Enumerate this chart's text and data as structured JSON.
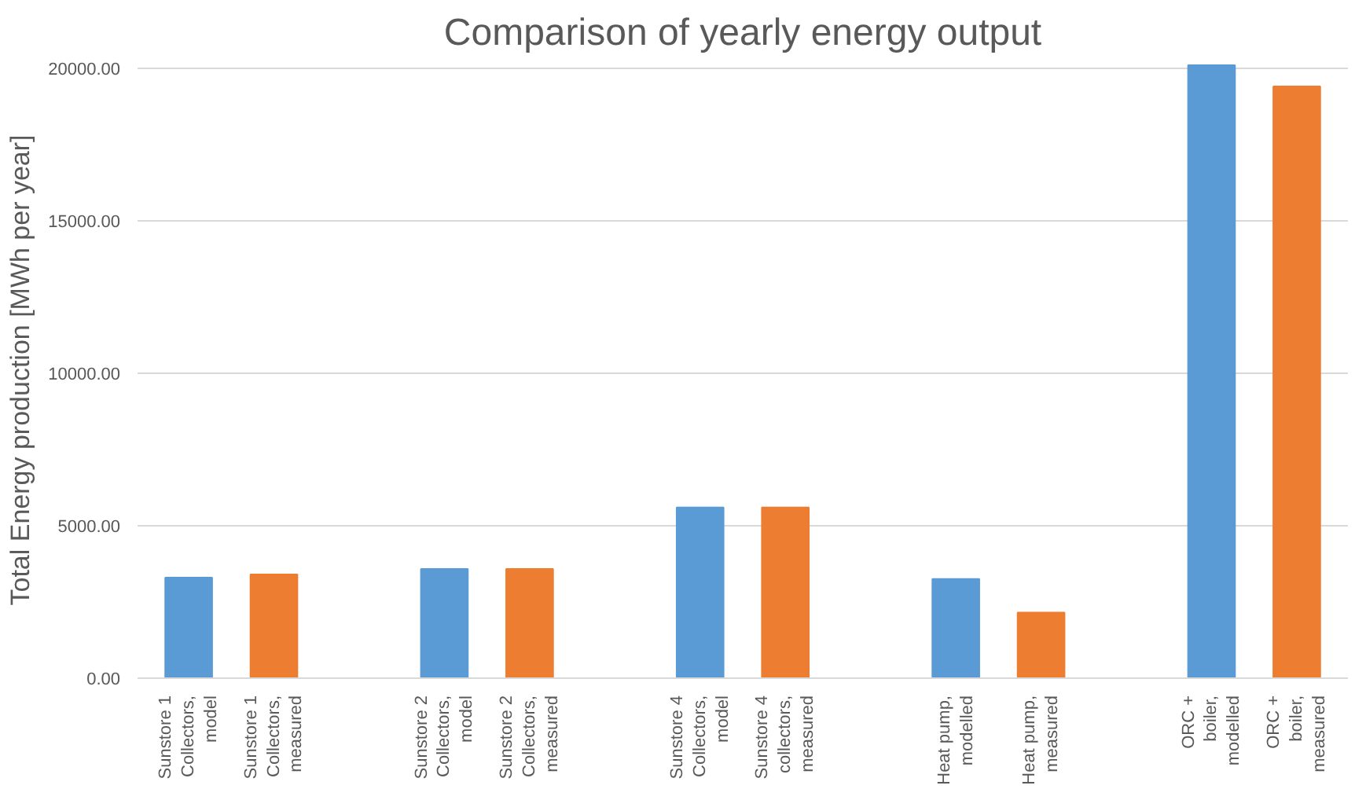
{
  "chart_data": {
    "type": "bar",
    "title": "Comparison of yearly energy output",
    "ylabel": "Total Energy production [MWh per year]",
    "categories": [
      "Sunstore 1\nCollectors,\nmodel",
      "Sunstore 1\nCollectors,\nmeasured",
      null,
      "Sunstore 2\nCollectors,\nmodel",
      "Sunstore 2\nCollectors,\nmeasured",
      null,
      "Sunstore 4\nCollectors,\nmodel",
      "Sunstore 4\ncollectors,\nmeasured",
      null,
      "Heat pump,\nmodelled",
      "Heat pump,\nmeasured",
      null,
      "ORC +\nboiler,\nmodelled",
      "ORC +\nboiler,\nmeasured"
    ],
    "values": [
      3300,
      3400,
      null,
      3580,
      3580,
      null,
      5600,
      5600,
      null,
      3250,
      2150,
      null,
      20100,
      19400
    ],
    "colors": [
      "#5b9bd5",
      "#ed7d31",
      null,
      "#5b9bd5",
      "#ed7d31",
      null,
      "#5b9bd5",
      "#ed7d31",
      null,
      "#5b9bd5",
      "#ed7d31",
      null,
      "#5b9bd5",
      "#ed7d31"
    ],
    "ylim": [
      0,
      20200
    ],
    "yticks": [
      {
        "value": 0,
        "label": "0.00"
      },
      {
        "value": 5000,
        "label": "5000.00"
      },
      {
        "value": 10000,
        "label": "10000.00"
      },
      {
        "value": 15000,
        "label": "15000.00"
      },
      {
        "value": 20000,
        "label": "20000.00"
      }
    ],
    "grid": "y"
  }
}
